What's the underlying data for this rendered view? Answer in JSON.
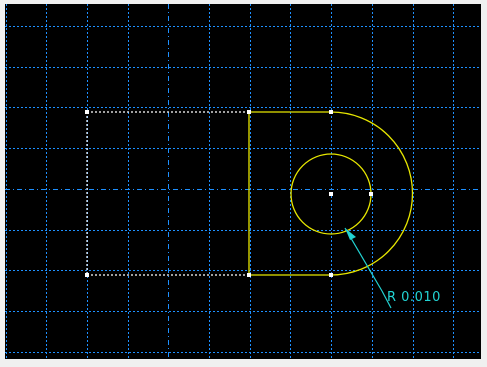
{
  "viewport": {
    "background": "#000000",
    "grid_color": "#1e90ff"
  },
  "sketch": {
    "rectangle_color": "#ffffff",
    "profile_color": "#e6e600",
    "point_color": "#ffffff"
  },
  "dimension": {
    "label": "R 0.010",
    "color": "#22d3d3"
  }
}
